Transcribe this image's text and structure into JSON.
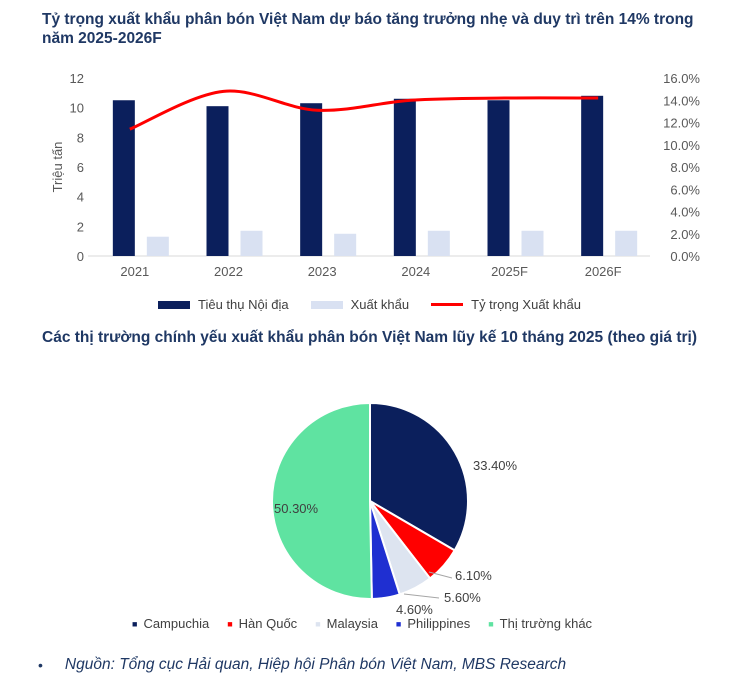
{
  "titles": {
    "chart1": "Tỷ trọng xuất khẩu phân bón Việt Nam dự báo tăng trưởng nhẹ và duy trì trên 14% trong năm 2025-2026F",
    "chart2": "Các thị trường chính yếu xuất khẩu phân bón Việt Nam lũy kế 10 tháng 2025 (theo giá trị)"
  },
  "chart_data": [
    {
      "type": "bar",
      "categories": [
        "2021",
        "2022",
        "2023",
        "2024",
        "2025F",
        "2026F"
      ],
      "series": [
        {
          "name": "Tiêu thụ Nội địa",
          "axis": "left",
          "color": "#0b1f5c",
          "values": [
            10.5,
            10.1,
            10.3,
            10.6,
            10.5,
            10.8
          ]
        },
        {
          "name": "Xuất khẩu",
          "axis": "left",
          "color": "#d9e1f2",
          "values": [
            1.3,
            1.7,
            1.5,
            1.7,
            1.7,
            1.7
          ]
        },
        {
          "name": "Tỷ trọng Xuất khẩu",
          "type": "line",
          "axis": "right",
          "color": "#ff0000",
          "values": [
            11.4,
            14.8,
            13.1,
            14.0,
            14.2,
            14.2
          ]
        }
      ],
      "ylabel": "Triệu tấn",
      "ylim": [
        0,
        12
      ],
      "yticks": [
        "0",
        "2",
        "4",
        "6",
        "8",
        "10",
        "12"
      ],
      "y2lim": [
        0,
        16
      ],
      "y2ticks": [
        "0.0%",
        "2.0%",
        "4.0%",
        "6.0%",
        "8.0%",
        "10.0%",
        "12.0%",
        "14.0%",
        "16.0%"
      ],
      "grid": false,
      "legend": "bottom"
    },
    {
      "type": "pie",
      "labels": [
        "Campuchia",
        "Hàn Quốc",
        "Malaysia",
        "Philippines",
        "Thị trường khác"
      ],
      "values": [
        33.4,
        6.1,
        5.6,
        4.6,
        50.3
      ],
      "value_labels": [
        "33.40%",
        "6.10%",
        "5.60%",
        "4.60%",
        "50.30%"
      ],
      "colors": [
        "#0b1f5c",
        "#ff0000",
        "#dde4f0",
        "#1f2fd1",
        "#5fe3a1"
      ],
      "legend": "bottom"
    }
  ],
  "source": "Nguồn: Tổng cục Hải quan, Hiệp hội Phân bón Việt Nam, MBS Research",
  "bullet": "•"
}
